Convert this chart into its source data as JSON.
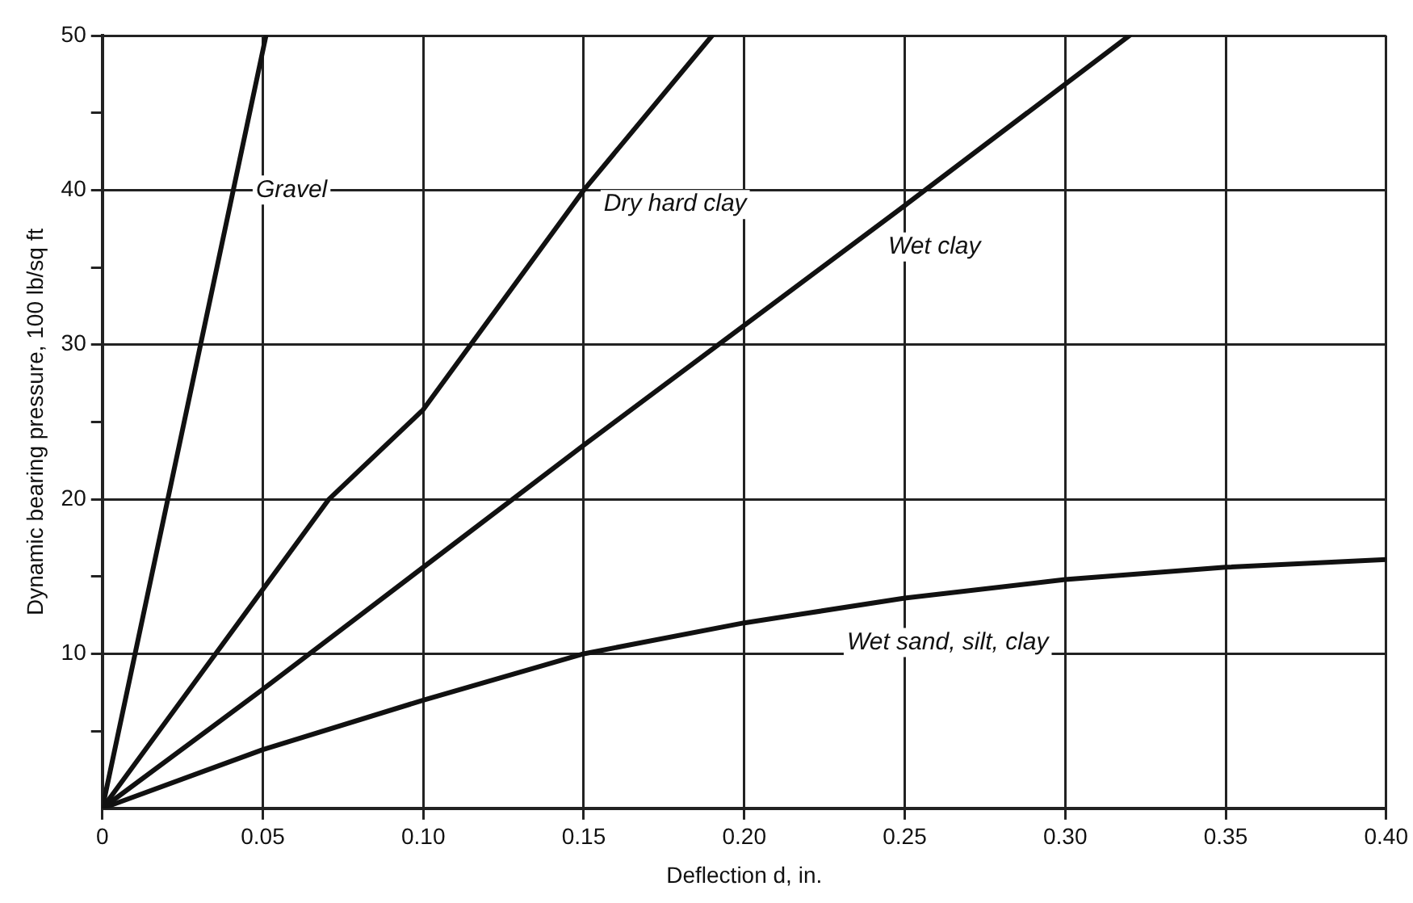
{
  "chart_data": {
    "type": "line",
    "xlabel": "Deflection d, in.",
    "ylabel": "Dynamic bearing pressure, 100 lb/sq ft",
    "xlim": [
      0,
      0.4
    ],
    "xticks": [
      0,
      0.05,
      {
        "value": 0.1,
        "label": "0.10"
      },
      0.15,
      {
        "value": 0.2,
        "label": "0.20"
      },
      0.25,
      {
        "value": 0.3,
        "label": "0.30"
      },
      0.35,
      {
        "value": 0.4,
        "label": "0.40"
      }
    ],
    "ylim": [
      0,
      50
    ],
    "yticks": [
      {
        "value": 5,
        "label": null
      },
      10,
      {
        "value": 15,
        "label": null
      },
      20,
      {
        "value": 25,
        "label": null
      },
      30,
      {
        "value": 35,
        "label": null
      },
      40,
      {
        "value": 45,
        "label": null
      },
      50
    ],
    "grid": true,
    "legend": false,
    "marker": "none",
    "line_style": "solid",
    "series": [
      {
        "name": "Gravel",
        "color": "#111111",
        "x": [
          0,
          0.051
        ],
        "values": [
          0,
          50
        ]
      },
      {
        "name": "Dry hard clay",
        "color": "#111111",
        "x": [
          0,
          0.0706,
          0.1,
          0.15,
          0.19
        ],
        "values": [
          0,
          20,
          25.8,
          40,
          50
        ]
      },
      {
        "name": "Wet clay",
        "color": "#111111",
        "x": [
          0,
          0.05,
          0.15,
          0.25,
          0.32
        ],
        "values": [
          0,
          7.7,
          23.5,
          39,
          50
        ]
      },
      {
        "name": "Wet sand, silt, clay",
        "color": "#111111",
        "x": [
          0,
          0.05,
          0.1,
          0.15,
          0.2,
          0.25,
          0.3,
          0.35,
          0.4
        ],
        "values": [
          0,
          3.8,
          7,
          10,
          12,
          13.6,
          14.8,
          15.6,
          16.1
        ]
      }
    ]
  }
}
